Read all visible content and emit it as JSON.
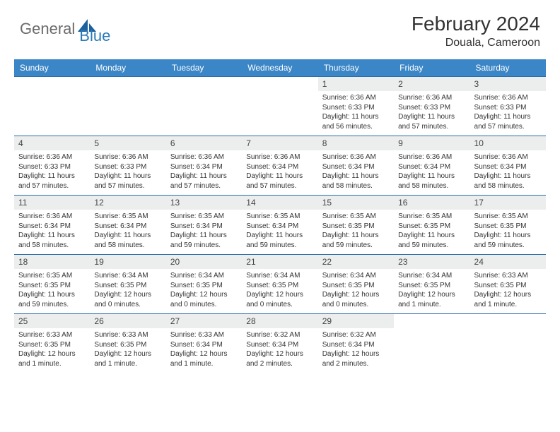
{
  "brand": {
    "general": "General",
    "blue": "Blue"
  },
  "title": {
    "month": "February 2024",
    "location": "Douala, Cameroon"
  },
  "colors": {
    "header_bg": "#3b86c6",
    "header_text": "#ffffff",
    "daynum_bg": "#eceded",
    "week_divider": "#2a6ea8",
    "brand_gray": "#6b6b6b",
    "brand_blue": "#2a7ab8"
  },
  "daysOfWeek": [
    "Sunday",
    "Monday",
    "Tuesday",
    "Wednesday",
    "Thursday",
    "Friday",
    "Saturday"
  ],
  "weeks": [
    [
      {
        "n": "",
        "sr": "",
        "ss": "",
        "dl": ""
      },
      {
        "n": "",
        "sr": "",
        "ss": "",
        "dl": ""
      },
      {
        "n": "",
        "sr": "",
        "ss": "",
        "dl": ""
      },
      {
        "n": "",
        "sr": "",
        "ss": "",
        "dl": ""
      },
      {
        "n": "1",
        "sr": "Sunrise: 6:36 AM",
        "ss": "Sunset: 6:33 PM",
        "dl": "Daylight: 11 hours and 56 minutes."
      },
      {
        "n": "2",
        "sr": "Sunrise: 6:36 AM",
        "ss": "Sunset: 6:33 PM",
        "dl": "Daylight: 11 hours and 57 minutes."
      },
      {
        "n": "3",
        "sr": "Sunrise: 6:36 AM",
        "ss": "Sunset: 6:33 PM",
        "dl": "Daylight: 11 hours and 57 minutes."
      }
    ],
    [
      {
        "n": "4",
        "sr": "Sunrise: 6:36 AM",
        "ss": "Sunset: 6:33 PM",
        "dl": "Daylight: 11 hours and 57 minutes."
      },
      {
        "n": "5",
        "sr": "Sunrise: 6:36 AM",
        "ss": "Sunset: 6:33 PM",
        "dl": "Daylight: 11 hours and 57 minutes."
      },
      {
        "n": "6",
        "sr": "Sunrise: 6:36 AM",
        "ss": "Sunset: 6:34 PM",
        "dl": "Daylight: 11 hours and 57 minutes."
      },
      {
        "n": "7",
        "sr": "Sunrise: 6:36 AM",
        "ss": "Sunset: 6:34 PM",
        "dl": "Daylight: 11 hours and 57 minutes."
      },
      {
        "n": "8",
        "sr": "Sunrise: 6:36 AM",
        "ss": "Sunset: 6:34 PM",
        "dl": "Daylight: 11 hours and 58 minutes."
      },
      {
        "n": "9",
        "sr": "Sunrise: 6:36 AM",
        "ss": "Sunset: 6:34 PM",
        "dl": "Daylight: 11 hours and 58 minutes."
      },
      {
        "n": "10",
        "sr": "Sunrise: 6:36 AM",
        "ss": "Sunset: 6:34 PM",
        "dl": "Daylight: 11 hours and 58 minutes."
      }
    ],
    [
      {
        "n": "11",
        "sr": "Sunrise: 6:36 AM",
        "ss": "Sunset: 6:34 PM",
        "dl": "Daylight: 11 hours and 58 minutes."
      },
      {
        "n": "12",
        "sr": "Sunrise: 6:35 AM",
        "ss": "Sunset: 6:34 PM",
        "dl": "Daylight: 11 hours and 58 minutes."
      },
      {
        "n": "13",
        "sr": "Sunrise: 6:35 AM",
        "ss": "Sunset: 6:34 PM",
        "dl": "Daylight: 11 hours and 59 minutes."
      },
      {
        "n": "14",
        "sr": "Sunrise: 6:35 AM",
        "ss": "Sunset: 6:34 PM",
        "dl": "Daylight: 11 hours and 59 minutes."
      },
      {
        "n": "15",
        "sr": "Sunrise: 6:35 AM",
        "ss": "Sunset: 6:35 PM",
        "dl": "Daylight: 11 hours and 59 minutes."
      },
      {
        "n": "16",
        "sr": "Sunrise: 6:35 AM",
        "ss": "Sunset: 6:35 PM",
        "dl": "Daylight: 11 hours and 59 minutes."
      },
      {
        "n": "17",
        "sr": "Sunrise: 6:35 AM",
        "ss": "Sunset: 6:35 PM",
        "dl": "Daylight: 11 hours and 59 minutes."
      }
    ],
    [
      {
        "n": "18",
        "sr": "Sunrise: 6:35 AM",
        "ss": "Sunset: 6:35 PM",
        "dl": "Daylight: 11 hours and 59 minutes."
      },
      {
        "n": "19",
        "sr": "Sunrise: 6:34 AM",
        "ss": "Sunset: 6:35 PM",
        "dl": "Daylight: 12 hours and 0 minutes."
      },
      {
        "n": "20",
        "sr": "Sunrise: 6:34 AM",
        "ss": "Sunset: 6:35 PM",
        "dl": "Daylight: 12 hours and 0 minutes."
      },
      {
        "n": "21",
        "sr": "Sunrise: 6:34 AM",
        "ss": "Sunset: 6:35 PM",
        "dl": "Daylight: 12 hours and 0 minutes."
      },
      {
        "n": "22",
        "sr": "Sunrise: 6:34 AM",
        "ss": "Sunset: 6:35 PM",
        "dl": "Daylight: 12 hours and 0 minutes."
      },
      {
        "n": "23",
        "sr": "Sunrise: 6:34 AM",
        "ss": "Sunset: 6:35 PM",
        "dl": "Daylight: 12 hours and 1 minute."
      },
      {
        "n": "24",
        "sr": "Sunrise: 6:33 AM",
        "ss": "Sunset: 6:35 PM",
        "dl": "Daylight: 12 hours and 1 minute."
      }
    ],
    [
      {
        "n": "25",
        "sr": "Sunrise: 6:33 AM",
        "ss": "Sunset: 6:35 PM",
        "dl": "Daylight: 12 hours and 1 minute."
      },
      {
        "n": "26",
        "sr": "Sunrise: 6:33 AM",
        "ss": "Sunset: 6:35 PM",
        "dl": "Daylight: 12 hours and 1 minute."
      },
      {
        "n": "27",
        "sr": "Sunrise: 6:33 AM",
        "ss": "Sunset: 6:34 PM",
        "dl": "Daylight: 12 hours and 1 minute."
      },
      {
        "n": "28",
        "sr": "Sunrise: 6:32 AM",
        "ss": "Sunset: 6:34 PM",
        "dl": "Daylight: 12 hours and 2 minutes."
      },
      {
        "n": "29",
        "sr": "Sunrise: 6:32 AM",
        "ss": "Sunset: 6:34 PM",
        "dl": "Daylight: 12 hours and 2 minutes."
      },
      {
        "n": "",
        "sr": "",
        "ss": "",
        "dl": ""
      },
      {
        "n": "",
        "sr": "",
        "ss": "",
        "dl": ""
      }
    ]
  ]
}
